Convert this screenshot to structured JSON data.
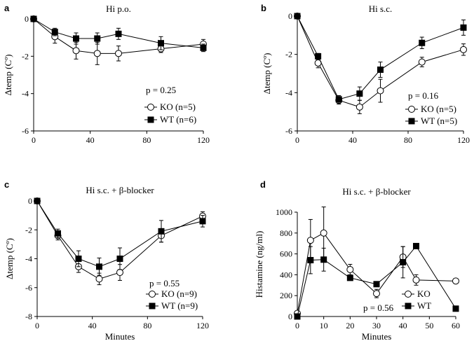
{
  "chart_data": [
    {
      "type": "line",
      "panel_label": "a",
      "title": "Hi p.o.",
      "xlabel": "",
      "ylabel": "Δtemp (Cº)",
      "xlim": [
        0,
        120
      ],
      "ylim": [
        -6,
        0
      ],
      "xticks": [
        "0",
        "40",
        "80",
        "120"
      ],
      "xtick_values": [
        0,
        40,
        80,
        120
      ],
      "yticks": [
        "0",
        "-2",
        "-4",
        "-6"
      ],
      "ytick_values": [
        0,
        -2,
        -4,
        -6
      ],
      "p_value": "p = 0.25",
      "legend_position": "bottom-right",
      "series": [
        {
          "name": "KO (n=5)",
          "marker": "open-circle",
          "x": [
            0,
            15,
            30,
            45,
            60,
            90,
            120
          ],
          "values": [
            0,
            -0.95,
            -1.7,
            -1.85,
            -1.85,
            -1.6,
            -1.35
          ],
          "err": [
            0,
            0.35,
            0.45,
            0.6,
            0.4,
            0.2,
            0.25
          ]
        },
        {
          "name": "WT (n=6)",
          "marker": "filled-square",
          "x": [
            0,
            15,
            30,
            45,
            60,
            90,
            120
          ],
          "values": [
            0,
            -0.7,
            -1.05,
            -1.05,
            -0.8,
            -1.3,
            -1.55
          ],
          "err": [
            0,
            0.2,
            0.3,
            0.3,
            0.3,
            0.35,
            0.2
          ]
        }
      ]
    },
    {
      "type": "line",
      "panel_label": "b",
      "title": "Hi s.c.",
      "xlabel": "",
      "ylabel": "Δtemp (Cº)",
      "xlim": [
        0,
        120
      ],
      "ylim": [
        -6,
        0
      ],
      "xticks": [
        "0",
        "40",
        "80",
        "120"
      ],
      "xtick_values": [
        0,
        40,
        80,
        120
      ],
      "yticks": [
        "0",
        "-2",
        "-4",
        "-6"
      ],
      "ytick_values": [
        0,
        -2,
        -4,
        -6
      ],
      "p_value": "p = 0.16",
      "legend_position": "bottom-right",
      "series": [
        {
          "name": "KO (n=5)",
          "marker": "open-circle",
          "x": [
            0,
            15,
            30,
            45,
            60,
            90,
            120
          ],
          "values": [
            0,
            -2.45,
            -4.4,
            -4.75,
            -3.9,
            -2.4,
            -1.75
          ],
          "err": [
            0,
            0.25,
            0.2,
            0.35,
            0.6,
            0.25,
            0.3
          ]
        },
        {
          "name": "WT (n=5)",
          "marker": "filled-square",
          "x": [
            0,
            15,
            30,
            45,
            60,
            90,
            120
          ],
          "values": [
            0,
            -2.1,
            -4.35,
            -4.05,
            -2.8,
            -1.4,
            -0.6
          ],
          "err": [
            0,
            0.15,
            0.2,
            0.35,
            0.4,
            0.3,
            0.4
          ]
        }
      ]
    },
    {
      "type": "line",
      "panel_label": "c",
      "title": "Hi s.c. + β-blocker",
      "xlabel": "Minutes",
      "ylabel": "Δtemp (Cº)",
      "xlim": [
        0,
        120
      ],
      "ylim": [
        -8,
        0
      ],
      "xticks": [
        "0",
        "40",
        "80",
        "120"
      ],
      "xtick_values": [
        0,
        40,
        80,
        120
      ],
      "yticks": [
        "0",
        "-2",
        "-4",
        "-6",
        "-8"
      ],
      "ytick_values": [
        0,
        -2,
        -4,
        -6,
        -8
      ],
      "p_value": "p = 0.55",
      "legend_position": "bottom-right",
      "series": [
        {
          "name": "KO (n=9)",
          "marker": "open-circle",
          "x": [
            0,
            15,
            30,
            45,
            60,
            90,
            120
          ],
          "values": [
            0,
            -2.4,
            -4.55,
            -5.4,
            -4.95,
            -2.4,
            -1.05
          ],
          "err": [
            0,
            0.3,
            0.4,
            0.4,
            0.55,
            0.45,
            0.3
          ]
        },
        {
          "name": "WT (n=9)",
          "marker": "filled-square",
          "x": [
            0,
            15,
            30,
            45,
            60,
            90,
            120
          ],
          "values": [
            0,
            -2.25,
            -4.0,
            -4.55,
            -4.0,
            -2.1,
            -1.4
          ],
          "err": [
            0,
            0.3,
            0.55,
            0.6,
            0.75,
            0.75,
            0.4
          ]
        }
      ]
    },
    {
      "type": "line",
      "panel_label": "d",
      "title": "Hi s.c. + β-blocker",
      "xlabel": "Minutes",
      "ylabel": "Histamine (ng/ml)",
      "xlim": [
        0,
        60
      ],
      "ylim": [
        0,
        1000
      ],
      "xticks": [
        "0",
        "10",
        "20",
        "30",
        "40",
        "50",
        "60"
      ],
      "xtick_values": [
        0,
        10,
        20,
        30,
        40,
        50,
        60
      ],
      "yticks": [
        "0",
        "200",
        "400",
        "600",
        "800",
        "1000"
      ],
      "ytick_values": [
        0,
        200,
        400,
        600,
        800,
        1000
      ],
      "p_value": "p = 0.56",
      "legend_position": "bottom-right",
      "series": [
        {
          "name": "KO",
          "marker": "open-circle",
          "x": [
            0,
            5,
            10,
            20,
            30,
            40,
            45,
            60
          ],
          "values": [
            30,
            730,
            800,
            450,
            220,
            570,
            350,
            340
          ],
          "err": [
            0,
            200,
            250,
            50,
            40,
            100,
            50,
            0
          ]
        },
        {
          "name": "WT",
          "marker": "filled-square",
          "x": [
            0,
            5,
            10,
            20,
            30,
            40,
            45,
            60
          ],
          "values": [
            0,
            540,
            545,
            370,
            310,
            520,
            675,
            75
          ],
          "err": [
            0,
            130,
            110,
            0,
            0,
            150,
            0,
            0
          ]
        }
      ]
    }
  ]
}
